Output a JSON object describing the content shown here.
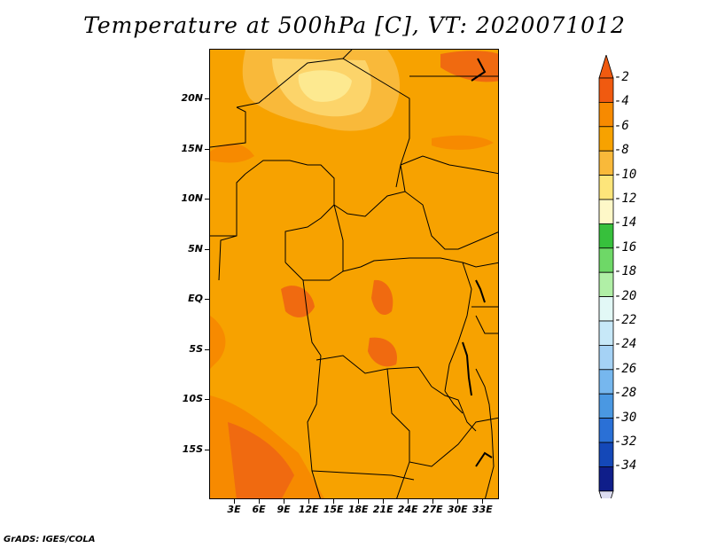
{
  "title": "Temperature at 500hPa [C], VT: 2020071012",
  "footer": "GrADS: IGES/COLA",
  "map": {
    "lon_range": [
      0,
      35
    ],
    "lat_range": [
      -20,
      25
    ],
    "lat_labels": [
      {
        "text": "20N",
        "lat": 20
      },
      {
        "text": "15N",
        "lat": 15
      },
      {
        "text": "10N",
        "lat": 10
      },
      {
        "text": "5N",
        "lat": 5
      },
      {
        "text": "EQ",
        "lat": 0
      },
      {
        "text": "5S",
        "lat": -5
      },
      {
        "text": "10S",
        "lat": -10
      },
      {
        "text": "15S",
        "lat": -15
      }
    ],
    "lon_labels": [
      {
        "text": "3E",
        "lon": 3
      },
      {
        "text": "6E",
        "lon": 6
      },
      {
        "text": "9E",
        "lon": 9
      },
      {
        "text": "12E",
        "lon": 12
      },
      {
        "text": "15E",
        "lon": 15
      },
      {
        "text": "18E",
        "lon": 18
      },
      {
        "text": "21E",
        "lon": 21
      },
      {
        "text": "24E",
        "lon": 24
      },
      {
        "text": "27E",
        "lon": 27
      },
      {
        "text": "30E",
        "lon": 30
      },
      {
        "text": "33E",
        "lon": 33
      }
    ]
  },
  "colorbar": {
    "labels": [
      "-2",
      "-4",
      "-6",
      "-8",
      "-10",
      "-12",
      "-14",
      "-16",
      "-18",
      "-20",
      "-22",
      "-24",
      "-26",
      "-28",
      "-30",
      "-32",
      "-34"
    ],
    "colors": [
      "#f05a10",
      "#f78a00",
      "#f7a200",
      "#f9b93a",
      "#fde57a",
      "#fef8c8",
      "#37c03c",
      "#6ed867",
      "#b0efa6",
      "#e2f8f6",
      "#c7e8f8",
      "#a5d2f5",
      "#76b7ee",
      "#4a98e2",
      "#2a70d6",
      "#1448b8",
      "#0f1e8a",
      "#080a5a"
    ],
    "top_color": "#f05a10",
    "bottom_color": "#dcdcf0"
  }
}
